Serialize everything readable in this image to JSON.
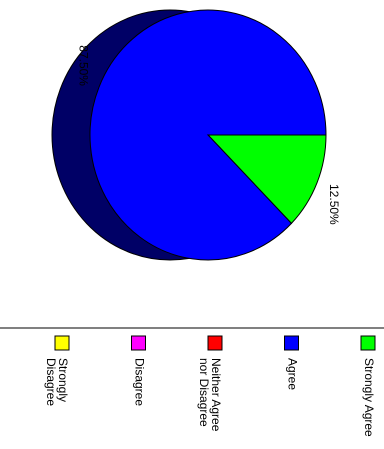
{
  "chart_data": {
    "type": "pie",
    "categories": [
      "Strongly Agree",
      "Agree",
      "Neither Agree nor Disagree",
      "Disagree",
      "Strongly Disagree"
    ],
    "values": [
      12.5,
      87.5,
      0,
      0,
      0
    ],
    "value_labels": [
      "12.50%",
      "87.50%",
      null,
      null,
      null
    ],
    "colors": [
      "#00ff00",
      "#0000ff",
      "#ff0000",
      "#ff00ff",
      "#ffff00"
    ]
  }
}
